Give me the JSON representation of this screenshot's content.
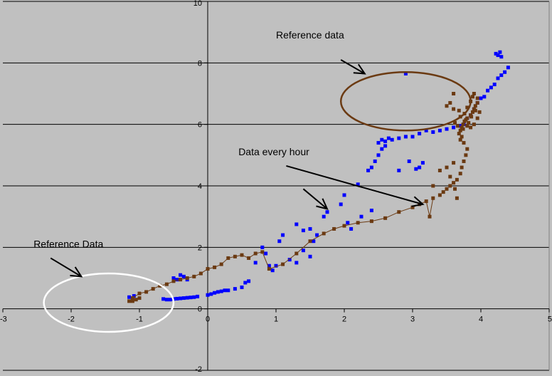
{
  "chart_data": {
    "type": "scatter",
    "title": "",
    "xlabel": "",
    "ylabel": "",
    "xlim": [
      -3,
      5
    ],
    "ylim": [
      -2,
      10
    ],
    "grid": {
      "x": false,
      "y": true
    },
    "x_ticks": [
      -3,
      -2,
      -1,
      0,
      1,
      2,
      3,
      4,
      5
    ],
    "y_ticks": [
      -2,
      0,
      2,
      4,
      6,
      8,
      10
    ],
    "colors": {
      "background": "#c0c0c0",
      "blue": "#0000ff",
      "brown": "#6b3a12",
      "ellipse_brown": "#6b3a12",
      "ellipse_white": "#ffffff",
      "arrow": "#000000"
    },
    "series": [
      {
        "color": "#0000ff",
        "marker": "square",
        "line": false,
        "points": [
          [
            -1.15,
            0.38
          ],
          [
            -1.08,
            0.42
          ],
          [
            -0.65,
            0.32
          ],
          [
            -0.6,
            0.3
          ],
          [
            -0.55,
            0.3
          ],
          [
            -0.5,
            0.32
          ],
          [
            -0.45,
            0.33
          ],
          [
            -0.4,
            0.34
          ],
          [
            -0.35,
            0.35
          ],
          [
            -0.3,
            0.36
          ],
          [
            -0.25,
            0.37
          ],
          [
            -0.2,
            0.38
          ],
          [
            -0.15,
            0.4
          ],
          [
            -0.5,
            1.0
          ],
          [
            -0.45,
            0.95
          ],
          [
            -0.4,
            1.1
          ],
          [
            -0.35,
            1.05
          ],
          [
            -0.3,
            0.95
          ],
          [
            0.0,
            0.45
          ],
          [
            0.05,
            0.48
          ],
          [
            0.1,
            0.52
          ],
          [
            0.15,
            0.55
          ],
          [
            0.2,
            0.57
          ],
          [
            0.25,
            0.6
          ],
          [
            0.3,
            0.6
          ],
          [
            0.4,
            0.65
          ],
          [
            0.5,
            0.7
          ],
          [
            0.55,
            0.85
          ],
          [
            0.6,
            0.9
          ],
          [
            0.7,
            1.5
          ],
          [
            0.8,
            2.0
          ],
          [
            0.85,
            1.8
          ],
          [
            0.9,
            1.4
          ],
          [
            1.05,
            2.2
          ],
          [
            1.1,
            2.4
          ],
          [
            1.3,
            2.75
          ],
          [
            1.4,
            2.55
          ],
          [
            1.5,
            2.6
          ],
          [
            1.4,
            1.9
          ],
          [
            1.5,
            1.7
          ],
          [
            1.3,
            1.5
          ],
          [
            1.2,
            1.6
          ],
          [
            1.0,
            1.4
          ],
          [
            0.95,
            1.25
          ],
          [
            1.55,
            2.2
          ],
          [
            1.6,
            2.4
          ],
          [
            1.7,
            3.0
          ],
          [
            1.75,
            3.15
          ],
          [
            1.95,
            3.4
          ],
          [
            2.0,
            3.7
          ],
          [
            2.05,
            2.8
          ],
          [
            2.1,
            2.6
          ],
          [
            2.2,
            4.05
          ],
          [
            2.25,
            3.0
          ],
          [
            2.4,
            3.2
          ],
          [
            2.35,
            4.5
          ],
          [
            2.4,
            4.6
          ],
          [
            2.45,
            4.8
          ],
          [
            2.5,
            5.0
          ],
          [
            2.55,
            5.2
          ],
          [
            2.6,
            5.3
          ],
          [
            2.5,
            5.4
          ],
          [
            2.55,
            5.5
          ],
          [
            2.6,
            5.45
          ],
          [
            2.65,
            5.55
          ],
          [
            2.7,
            5.5
          ],
          [
            2.8,
            5.55
          ],
          [
            2.9,
            5.6
          ],
          [
            3.0,
            5.6
          ],
          [
            3.1,
            5.7
          ],
          [
            3.2,
            5.8
          ],
          [
            3.3,
            5.75
          ],
          [
            3.4,
            5.8
          ],
          [
            3.5,
            5.85
          ],
          [
            3.6,
            5.9
          ],
          [
            3.7,
            5.95
          ],
          [
            3.75,
            6.0
          ],
          [
            3.8,
            6.2
          ],
          [
            3.85,
            6.3
          ],
          [
            3.9,
            6.5
          ],
          [
            3.95,
            6.7
          ],
          [
            4.0,
            6.85
          ],
          [
            4.05,
            6.9
          ],
          [
            4.1,
            7.1
          ],
          [
            4.15,
            7.2
          ],
          [
            4.2,
            7.3
          ],
          [
            4.25,
            7.5
          ],
          [
            4.3,
            7.6
          ],
          [
            4.35,
            7.7
          ],
          [
            4.4,
            7.85
          ],
          [
            4.22,
            8.3
          ],
          [
            4.25,
            8.25
          ],
          [
            4.28,
            8.35
          ],
          [
            4.3,
            8.2
          ],
          [
            3.1,
            4.6
          ],
          [
            3.15,
            4.75
          ],
          [
            3.05,
            4.55
          ],
          [
            2.95,
            4.8
          ],
          [
            2.8,
            4.5
          ],
          [
            2.9,
            7.65
          ]
        ]
      },
      {
        "color": "#6b3a12",
        "marker": "square",
        "line": true,
        "points": [
          [
            -1.15,
            0.25
          ],
          [
            -1.1,
            0.35
          ],
          [
            -1.0,
            0.5
          ],
          [
            -0.9,
            0.55
          ],
          [
            -0.8,
            0.65
          ],
          [
            -0.7,
            0.75
          ],
          [
            -0.6,
            0.8
          ],
          [
            -0.5,
            0.9
          ],
          [
            -0.4,
            0.95
          ],
          [
            -0.3,
            1.0
          ],
          [
            -0.2,
            1.05
          ],
          [
            -0.1,
            1.15
          ],
          [
            0.0,
            1.3
          ],
          [
            0.1,
            1.35
          ],
          [
            0.2,
            1.45
          ],
          [
            0.3,
            1.65
          ],
          [
            0.4,
            1.7
          ],
          [
            0.5,
            1.75
          ],
          [
            0.6,
            1.65
          ],
          [
            0.7,
            1.8
          ],
          [
            0.8,
            1.85
          ],
          [
            0.9,
            1.3
          ],
          [
            1.1,
            1.45
          ],
          [
            1.3,
            1.8
          ],
          [
            1.5,
            2.2
          ],
          [
            1.7,
            2.45
          ],
          [
            1.85,
            2.6
          ],
          [
            2.0,
            2.7
          ],
          [
            2.2,
            2.8
          ],
          [
            2.4,
            2.85
          ],
          [
            2.6,
            2.95
          ],
          [
            2.8,
            3.15
          ],
          [
            3.0,
            3.3
          ],
          [
            3.1,
            3.4
          ],
          [
            3.2,
            3.5
          ],
          [
            3.25,
            3.0
          ],
          [
            3.3,
            3.6
          ]
        ]
      },
      {
        "color": "#6b3a12",
        "marker": "square",
        "line": false,
        "points": [
          [
            -1.1,
            0.25
          ],
          [
            -1.05,
            0.3
          ],
          [
            -1.0,
            0.35
          ],
          [
            3.4,
            3.7
          ],
          [
            3.45,
            3.8
          ],
          [
            3.5,
            3.9
          ],
          [
            3.55,
            4.0
          ],
          [
            3.6,
            4.1
          ],
          [
            3.65,
            4.2
          ],
          [
            3.7,
            4.4
          ],
          [
            3.72,
            4.6
          ],
          [
            3.75,
            4.8
          ],
          [
            3.78,
            5.0
          ],
          [
            3.8,
            5.2
          ],
          [
            3.75,
            5.4
          ],
          [
            3.7,
            5.5
          ],
          [
            3.72,
            5.6
          ],
          [
            3.68,
            5.7
          ],
          [
            3.7,
            5.8
          ],
          [
            3.72,
            5.9
          ],
          [
            3.74,
            6.0
          ],
          [
            3.76,
            6.1
          ],
          [
            3.8,
            6.2
          ],
          [
            3.85,
            6.3
          ],
          [
            3.88,
            6.4
          ],
          [
            3.9,
            6.5
          ],
          [
            3.92,
            6.6
          ],
          [
            3.95,
            6.7
          ],
          [
            3.98,
            6.4
          ],
          [
            3.95,
            6.2
          ],
          [
            3.9,
            6.0
          ],
          [
            3.85,
            5.9
          ],
          [
            3.82,
            6.05
          ],
          [
            3.78,
            6.15
          ],
          [
            3.76,
            6.35
          ],
          [
            3.8,
            6.55
          ],
          [
            3.85,
            6.75
          ],
          [
            3.88,
            6.9
          ],
          [
            3.9,
            7.0
          ],
          [
            3.95,
            6.85
          ],
          [
            3.92,
            6.45
          ],
          [
            3.86,
            6.25
          ],
          [
            3.8,
            5.95
          ],
          [
            3.74,
            5.85
          ],
          [
            3.7,
            6.25
          ],
          [
            3.68,
            6.45
          ],
          [
            3.66,
            5.95
          ],
          [
            3.62,
            6.05
          ],
          [
            3.6,
            6.5
          ],
          [
            3.3,
            4.0
          ],
          [
            3.4,
            4.5
          ],
          [
            3.5,
            4.6
          ],
          [
            3.55,
            4.3
          ],
          [
            3.6,
            4.75
          ],
          [
            3.62,
            3.9
          ],
          [
            3.65,
            3.6
          ],
          [
            3.5,
            6.6
          ],
          [
            3.55,
            6.7
          ],
          [
            3.6,
            7.0
          ]
        ]
      }
    ],
    "annotations": [
      {
        "text": "Reference  data",
        "x": 1.0,
        "y": 8.8
      },
      {
        "text": "Data every hour",
        "x": 0.45,
        "y": 5.0
      },
      {
        "text": "Reference Data",
        "x": -2.55,
        "y": 2.0
      }
    ]
  }
}
